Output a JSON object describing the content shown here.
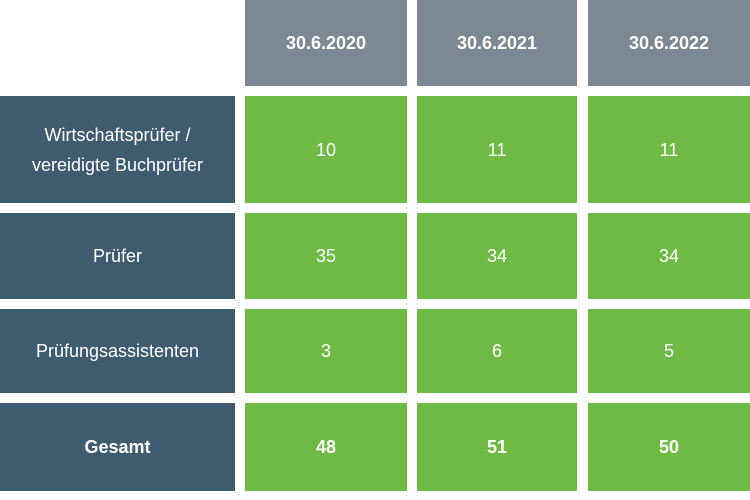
{
  "chart_data": {
    "type": "table",
    "columns": [
      "30.6.2020",
      "30.6.2021",
      "30.6.2022"
    ],
    "rows": [
      {
        "label": "Wirtschaftsprüfer /\nvereidigte Buchprüfer",
        "values": [
          10,
          11,
          11
        ]
      },
      {
        "label": "Prüfer",
        "values": [
          35,
          34,
          34
        ]
      },
      {
        "label": "Prüfungsassistenten",
        "values": [
          3,
          6,
          5
        ]
      },
      {
        "label": "Gesamt",
        "values": [
          48,
          51,
          50
        ],
        "bold": true
      }
    ]
  },
  "colors": {
    "header_bg": "#7c8894",
    "row_label_bg": "#3f5b70",
    "value_bg": "#6fba45",
    "text": "#ffffff"
  }
}
